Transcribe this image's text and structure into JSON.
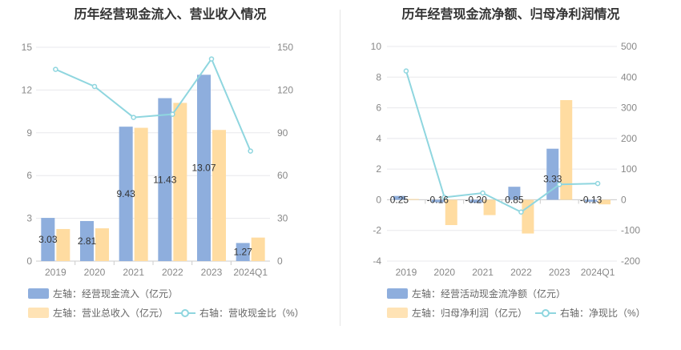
{
  "colors": {
    "bar1": "#8eaedd",
    "bar2": "#ffdca1",
    "line": "#8fd6df",
    "grid": "#e8e8ec",
    "axis": "#888888"
  },
  "chart_data": [
    {
      "type": "bar",
      "title": "历年经营现金流入、营业收入情况",
      "categories": [
        "2019",
        "2020",
        "2021",
        "2022",
        "2023",
        "2024Q1"
      ],
      "left_axis": {
        "min": 0,
        "max": 15,
        "ticks": [
          "0",
          "3",
          "6",
          "9",
          "12",
          "15"
        ]
      },
      "right_axis": {
        "min": 0,
        "max": 150,
        "ticks": [
          "0",
          "30",
          "60",
          "90",
          "120",
          "150"
        ]
      },
      "series": [
        {
          "name": "左轴：经营现金流入（亿元）",
          "kind": "bar",
          "axis": "left",
          "values": [
            3.03,
            2.81,
            9.43,
            11.43,
            13.07,
            1.27
          ],
          "labels": [
            "3.03",
            "2.81",
            "9.43",
            "11.43",
            "13.07",
            "1.27"
          ]
        },
        {
          "name": "左轴：营业总收入（亿元）",
          "kind": "bar",
          "axis": "left",
          "values": [
            2.25,
            2.3,
            9.35,
            11.1,
            9.2,
            1.65
          ]
        },
        {
          "name": "右轴：营收现金比（%）",
          "kind": "line",
          "axis": "right",
          "values": [
            134.5,
            122.5,
            100.8,
            103,
            141.8,
            77.2
          ]
        }
      ]
    },
    {
      "type": "bar",
      "title": "历年经营现金流净额、归母净利润情况",
      "categories": [
        "2019",
        "2020",
        "2021",
        "2022",
        "2023",
        "2024Q1"
      ],
      "left_axis": {
        "min": -4,
        "max": 10,
        "ticks": [
          "-4",
          "-2",
          "0",
          "2",
          "4",
          "6",
          "8",
          "10"
        ]
      },
      "right_axis": {
        "min": -200,
        "max": 500,
        "ticks": [
          "-200",
          "-100",
          "0",
          "100",
          "200",
          "300",
          "400",
          "500"
        ]
      },
      "series": [
        {
          "name": "左轴：经营活动现金流净额（亿元）",
          "kind": "bar",
          "axis": "left",
          "values": [
            0.25,
            -0.16,
            -0.2,
            0.85,
            3.33,
            -0.13
          ],
          "labels": [
            "0.25",
            "-0.16",
            "-0.20",
            "0.85",
            "3.33",
            "-0.13"
          ]
        },
        {
          "name": "左轴：归母净利润（亿元）",
          "kind": "bar",
          "axis": "left",
          "values": [
            0.05,
            -1.65,
            -1.0,
            -2.2,
            6.5,
            -0.3
          ]
        },
        {
          "name": "右轴：净现比（%）",
          "kind": "line",
          "axis": "right",
          "values": [
            420,
            8,
            22,
            -40,
            50,
            53
          ]
        }
      ]
    }
  ]
}
